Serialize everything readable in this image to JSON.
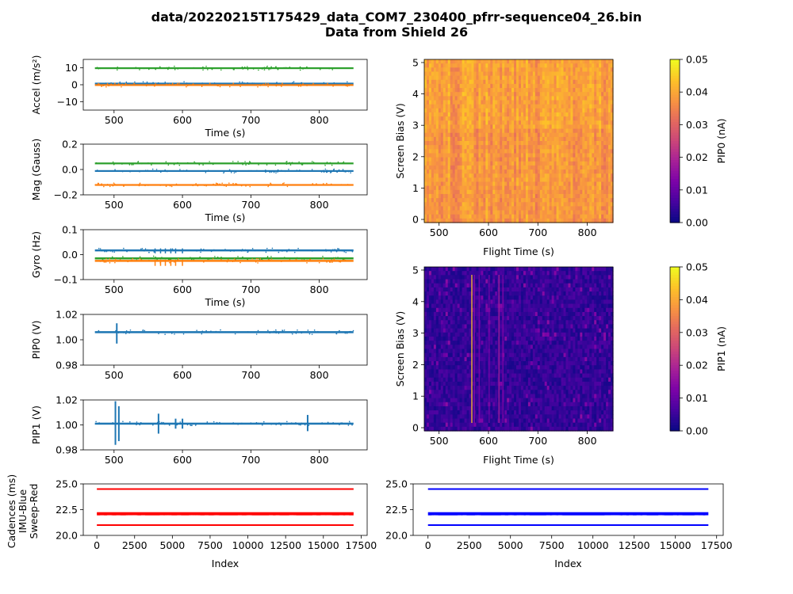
{
  "figure": {
    "title_line1": "data/20220215T175429_data_COM7_230400_pfrr-sequence04_26.bin",
    "title_line2": "Data from Shield 26"
  },
  "colors": {
    "blue": "#1f77b4",
    "orange": "#ff7f0e",
    "green": "#2ca02c",
    "red": "#ff0000",
    "pureblue": "#0000ff"
  },
  "chart_data": [
    {
      "id": "accel",
      "type": "scatter",
      "ylabel": "Accel (m/s²)",
      "xlabel": "Time (s)",
      "xlim": [
        455,
        870
      ],
      "ylim": [
        -15,
        15
      ],
      "xticks": [
        500,
        600,
        700,
        800
      ],
      "yticks": [
        10,
        0,
        -10
      ],
      "ytick_labels": [
        "10",
        "0",
        "−10"
      ],
      "series": [
        {
          "color": "green",
          "level": 9.8,
          "x_range": [
            472,
            850
          ],
          "spread": 0.3
        },
        {
          "color": "blue",
          "level": 0.7,
          "x_range": [
            472,
            850
          ],
          "spread": 0.4
        },
        {
          "color": "orange",
          "level": -0.2,
          "x_range": [
            472,
            850
          ],
          "spread": 0.4
        }
      ]
    },
    {
      "id": "mag",
      "type": "scatter",
      "ylabel": "Mag (Gauss)",
      "xlabel": "Time (s)",
      "xlim": [
        455,
        870
      ],
      "ylim": [
        -0.2,
        0.2
      ],
      "xticks": [
        500,
        600,
        700,
        800
      ],
      "yticks": [
        0.2,
        0.0,
        -0.2
      ],
      "ytick_labels": [
        "0.2",
        "0.0",
        "−0.2"
      ],
      "series": [
        {
          "color": "green",
          "level": 0.048,
          "x_range": [
            472,
            850
          ],
          "spread": 0.007
        },
        {
          "color": "blue",
          "level": -0.012,
          "x_range": [
            472,
            850
          ],
          "spread": 0.007
        },
        {
          "color": "orange",
          "level": -0.122,
          "x_range": [
            472,
            850
          ],
          "spread": 0.007
        }
      ]
    },
    {
      "id": "gyro",
      "type": "scatter",
      "ylabel": "Gyro (Hz)",
      "xlabel": "Time (s)",
      "xlim": [
        455,
        870
      ],
      "ylim": [
        -0.1,
        0.1
      ],
      "xticks": [
        500,
        600,
        700,
        800
      ],
      "yticks": [
        0.1,
        0.0,
        -0.1
      ],
      "ytick_labels": [
        "0.1",
        "0.0",
        "−0.1"
      ],
      "series": [
        {
          "color": "blue",
          "level": 0.017,
          "x_range": [
            472,
            850
          ],
          "spread": 0.004
        },
        {
          "color": "green",
          "level": -0.015,
          "x_range": [
            472,
            850
          ],
          "spread": 0.004
        },
        {
          "color": "orange",
          "level": -0.025,
          "x_range": [
            472,
            850
          ],
          "spread": 0.004
        }
      ]
    },
    {
      "id": "pip0v",
      "type": "scatter",
      "ylabel": "PIP0 (V)",
      "xlabel": "",
      "xlim": [
        455,
        870
      ],
      "ylim": [
        0.98,
        1.02
      ],
      "xticks": [
        500,
        600,
        700,
        800
      ],
      "yticks": [
        1.02,
        1.0,
        0.98
      ],
      "ytick_labels": [
        "1.02",
        "1.00",
        "0.98"
      ],
      "series": [
        {
          "color": "blue",
          "level": 1.006,
          "x_range": [
            472,
            850
          ],
          "spread": 0.0008
        }
      ]
    },
    {
      "id": "pip1v",
      "type": "scatter",
      "ylabel": "PIP1 (V)",
      "xlabel": "",
      "xlim": [
        455,
        870
      ],
      "ylim": [
        0.98,
        1.02
      ],
      "xticks": [
        500,
        600,
        700,
        800
      ],
      "yticks": [
        1.02,
        1.0,
        0.98
      ],
      "ytick_labels": [
        "1.02",
        "1.00",
        "0.98"
      ],
      "series": [
        {
          "color": "blue",
          "level": 1.001,
          "x_range": [
            472,
            850
          ],
          "spread": 0.0008
        }
      ]
    },
    {
      "id": "cad_left",
      "type": "scatter",
      "ylabel_lines": [
        "Cadences (ms)",
        "IMU-Blue",
        "Sweep-Red"
      ],
      "xlabel": "Index",
      "xlim": [
        -900,
        17900
      ],
      "ylim": [
        20.0,
        25.0
      ],
      "xticks": [
        0,
        2500,
        5000,
        7500,
        10000,
        12500,
        15000,
        17500
      ],
      "yticks": [
        25.0,
        22.5,
        20.0
      ],
      "ytick_labels": [
        "25.0",
        "22.5",
        "20.0"
      ],
      "series": [
        {
          "color": "red",
          "level": 24.5,
          "x_range": [
            0,
            17000
          ]
        },
        {
          "color": "red",
          "level": 22.1,
          "x_range": [
            0,
            17000
          ]
        },
        {
          "color": "red",
          "level": 21.0,
          "x_range": [
            0,
            17000
          ]
        }
      ]
    },
    {
      "id": "cad_right",
      "type": "scatter",
      "xlabel": "Index",
      "xlim": [
        -900,
        17900
      ],
      "ylim": [
        20.0,
        25.0
      ],
      "xticks": [
        0,
        2500,
        5000,
        7500,
        10000,
        12500,
        15000,
        17500
      ],
      "yticks": [
        25.0,
        22.5,
        20.0
      ],
      "ytick_labels": [
        "25.0",
        "22.5",
        "20.0"
      ],
      "series": [
        {
          "color": "pureblue",
          "level": 24.5,
          "x_range": [
            0,
            17000
          ]
        },
        {
          "color": "pureblue",
          "level": 22.1,
          "x_range": [
            0,
            17000
          ]
        },
        {
          "color": "pureblue",
          "level": 21.0,
          "x_range": [
            0,
            17000
          ]
        }
      ]
    },
    {
      "id": "hm0",
      "type": "heatmap",
      "ylabel": "Screen Bias (V)",
      "xlabel": "Flight Time (s)",
      "xlim": [
        470,
        852
      ],
      "ylim": [
        -0.1,
        5.1
      ],
      "xticks": [
        500,
        600,
        700,
        800
      ],
      "yticks": [
        0,
        1,
        2,
        3,
        4,
        5
      ],
      "colormap": "plasma",
      "clim": [
        0.0,
        0.05
      ],
      "typical_value": 0.039,
      "colorbar_label": "PIP0 (nA)",
      "colorbar_ticks": [
        "0.00",
        "0.01",
        "0.02",
        "0.03",
        "0.04",
        "0.05"
      ]
    },
    {
      "id": "hm1",
      "type": "heatmap",
      "ylabel": "Screen Bias (V)",
      "xlabel": "Flight Time (s)",
      "xlim": [
        470,
        852
      ],
      "ylim": [
        -0.1,
        5.1
      ],
      "xticks": [
        500,
        600,
        700,
        800
      ],
      "yticks": [
        0,
        1,
        2,
        3,
        4,
        5
      ],
      "colormap": "plasma",
      "clim": [
        0.0,
        0.05
      ],
      "typical_value": 0.004,
      "colorbar_label": "PIP1 (nA)",
      "colorbar_ticks": [
        "0.00",
        "0.01",
        "0.02",
        "0.03",
        "0.04",
        "0.05"
      ]
    }
  ]
}
